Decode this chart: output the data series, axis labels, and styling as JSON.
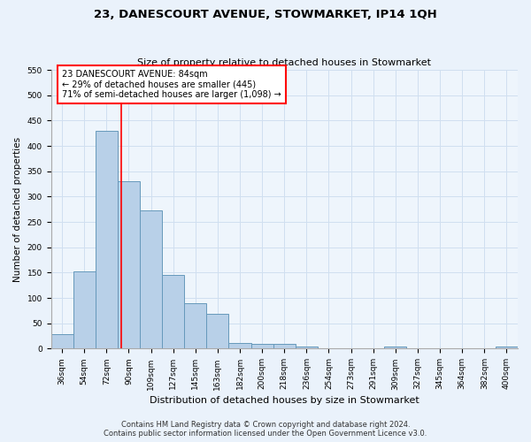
{
  "title": "23, DANESCOURT AVENUE, STOWMARKET, IP14 1QH",
  "subtitle": "Size of property relative to detached houses in Stowmarket",
  "xlabel": "Distribution of detached houses by size in Stowmarket",
  "ylabel": "Number of detached properties",
  "categories": [
    "36sqm",
    "54sqm",
    "72sqm",
    "90sqm",
    "109sqm",
    "127sqm",
    "145sqm",
    "163sqm",
    "182sqm",
    "200sqm",
    "218sqm",
    "236sqm",
    "254sqm",
    "273sqm",
    "291sqm",
    "309sqm",
    "327sqm",
    "345sqm",
    "364sqm",
    "382sqm",
    "400sqm"
  ],
  "values": [
    28,
    153,
    430,
    330,
    273,
    145,
    90,
    68,
    12,
    10,
    10,
    5,
    0,
    0,
    0,
    5,
    0,
    0,
    0,
    0,
    5
  ],
  "bar_color": "#b8d0e8",
  "bar_edge_color": "#6699bb",
  "grid_color": "#d0dff0",
  "annotation_box_text": "23 DANESCOURT AVENUE: 84sqm\n← 29% of detached houses are smaller (445)\n71% of semi-detached houses are larger (1,098) →",
  "annotation_box_color": "white",
  "annotation_box_edge_color": "red",
  "red_line_x": 2.67,
  "ylim": [
    0,
    550
  ],
  "yticks": [
    0,
    50,
    100,
    150,
    200,
    250,
    300,
    350,
    400,
    450,
    500,
    550
  ],
  "footer_line1": "Contains HM Land Registry data © Crown copyright and database right 2024.",
  "footer_line2": "Contains public sector information licensed under the Open Government Licence v3.0.",
  "bg_color": "#eaf2fb",
  "plot_bg_color": "#eef5fc",
  "title_fontsize": 9.5,
  "subtitle_fontsize": 8,
  "tick_fontsize": 6.5,
  "ylabel_fontsize": 7.5,
  "xlabel_fontsize": 8,
  "footer_fontsize": 6,
  "annotation_fontsize": 7
}
